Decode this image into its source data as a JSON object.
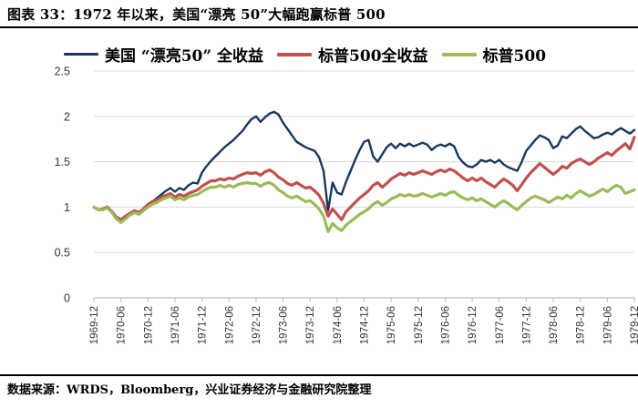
{
  "figure": {
    "title": "图表 33：1972 年以来，美国“漂亮 50”大幅跑赢标普 500",
    "source_note": "数据来源：WRDS，Bloomberg，兴业证券经济与金融研究院整理"
  },
  "chart_data": {
    "type": "line",
    "title": "",
    "xlabel": "",
    "ylabel": "",
    "ylim": [
      0,
      2.5
    ],
    "yticks": [
      "0",
      "0.5",
      "1",
      "1.5",
      "2",
      "2.5"
    ],
    "grid": "horizontal",
    "legend_position": "top",
    "x_tick_every": 6,
    "x": [
      "1969-12",
      "1970-01",
      "1970-02",
      "1970-03",
      "1970-04",
      "1970-05",
      "1970-06",
      "1970-07",
      "1970-08",
      "1970-09",
      "1970-10",
      "1970-11",
      "1970-12",
      "1971-01",
      "1971-02",
      "1971-03",
      "1971-04",
      "1971-05",
      "1971-06",
      "1971-07",
      "1971-08",
      "1971-09",
      "1971-10",
      "1971-11",
      "1971-12",
      "1972-01",
      "1972-02",
      "1972-03",
      "1972-04",
      "1972-05",
      "1972-06",
      "1972-07",
      "1972-08",
      "1972-09",
      "1972-10",
      "1972-11",
      "1972-12",
      "1973-01",
      "1973-02",
      "1973-03",
      "1973-04",
      "1973-05",
      "1973-06",
      "1973-07",
      "1973-08",
      "1973-09",
      "1973-10",
      "1973-11",
      "1973-12",
      "1974-01",
      "1974-02",
      "1974-03",
      "1974-04",
      "1974-05",
      "1974-06",
      "1974-07",
      "1974-08",
      "1974-09",
      "1974-10",
      "1974-11",
      "1974-12",
      "1975-01",
      "1975-02",
      "1975-03",
      "1975-04",
      "1975-05",
      "1975-06",
      "1975-07",
      "1975-08",
      "1975-09",
      "1975-10",
      "1975-11",
      "1975-12",
      "1976-01",
      "1976-02",
      "1976-03",
      "1976-04",
      "1976-05",
      "1976-06",
      "1976-07",
      "1976-08",
      "1976-09",
      "1976-10",
      "1976-11",
      "1976-12",
      "1977-01",
      "1977-02",
      "1977-03",
      "1977-04",
      "1977-05",
      "1977-06",
      "1977-07",
      "1977-08",
      "1977-09",
      "1977-10",
      "1977-11",
      "1977-12",
      "1978-01",
      "1978-02",
      "1978-03",
      "1978-04",
      "1978-05",
      "1978-06",
      "1978-07",
      "1978-08",
      "1978-09",
      "1978-10",
      "1978-11",
      "1978-12",
      "1979-01",
      "1979-02",
      "1979-03",
      "1979-04",
      "1979-05",
      "1979-06",
      "1979-07",
      "1979-08",
      "1979-09",
      "1979-10",
      "1979-11",
      "1979-12"
    ],
    "series": [
      {
        "name": "美国 “漂亮50” 全收益",
        "color": "#17375e",
        "width": 2.4,
        "values": [
          1.0,
          0.97,
          0.98,
          1.0,
          0.95,
          0.88,
          0.84,
          0.88,
          0.92,
          0.95,
          0.93,
          0.97,
          1.02,
          1.06,
          1.1,
          1.14,
          1.18,
          1.21,
          1.17,
          1.21,
          1.19,
          1.24,
          1.27,
          1.26,
          1.38,
          1.45,
          1.51,
          1.56,
          1.61,
          1.66,
          1.7,
          1.74,
          1.79,
          1.84,
          1.91,
          1.97,
          2.0,
          1.94,
          1.99,
          2.03,
          2.05,
          2.02,
          1.93,
          1.86,
          1.79,
          1.72,
          1.69,
          1.66,
          1.64,
          1.62,
          1.55,
          1.4,
          0.96,
          1.27,
          1.16,
          1.14,
          1.28,
          1.4,
          1.52,
          1.63,
          1.72,
          1.74,
          1.56,
          1.5,
          1.58,
          1.66,
          1.7,
          1.65,
          1.7,
          1.67,
          1.7,
          1.67,
          1.69,
          1.71,
          1.69,
          1.63,
          1.67,
          1.69,
          1.67,
          1.7,
          1.67,
          1.55,
          1.49,
          1.45,
          1.44,
          1.47,
          1.52,
          1.5,
          1.52,
          1.49,
          1.52,
          1.47,
          1.44,
          1.42,
          1.4,
          1.5,
          1.62,
          1.68,
          1.74,
          1.79,
          1.77,
          1.74,
          1.65,
          1.68,
          1.78,
          1.76,
          1.81,
          1.86,
          1.89,
          1.84,
          1.8,
          1.76,
          1.77,
          1.8,
          1.82,
          1.8,
          1.84,
          1.87,
          1.84,
          1.81,
          1.85
        ]
      },
      {
        "name": "标普500全收益",
        "color": "#c0504d",
        "width": 3.2,
        "values": [
          1.0,
          0.97,
          0.98,
          1.0,
          0.95,
          0.89,
          0.86,
          0.9,
          0.93,
          0.96,
          0.94,
          0.98,
          1.03,
          1.06,
          1.08,
          1.11,
          1.13,
          1.15,
          1.11,
          1.14,
          1.12,
          1.15,
          1.17,
          1.19,
          1.23,
          1.26,
          1.29,
          1.29,
          1.31,
          1.3,
          1.32,
          1.31,
          1.34,
          1.36,
          1.38,
          1.37,
          1.38,
          1.35,
          1.39,
          1.41,
          1.38,
          1.33,
          1.3,
          1.26,
          1.24,
          1.27,
          1.24,
          1.21,
          1.22,
          1.18,
          1.13,
          1.04,
          0.9,
          0.98,
          0.92,
          0.86,
          0.95,
          1.0,
          1.05,
          1.1,
          1.14,
          1.18,
          1.24,
          1.27,
          1.22,
          1.26,
          1.31,
          1.34,
          1.37,
          1.35,
          1.38,
          1.36,
          1.38,
          1.4,
          1.38,
          1.36,
          1.39,
          1.41,
          1.39,
          1.42,
          1.4,
          1.36,
          1.32,
          1.29,
          1.32,
          1.29,
          1.32,
          1.28,
          1.25,
          1.22,
          1.27,
          1.31,
          1.28,
          1.24,
          1.18,
          1.25,
          1.32,
          1.38,
          1.43,
          1.48,
          1.44,
          1.4,
          1.36,
          1.4,
          1.45,
          1.43,
          1.48,
          1.51,
          1.53,
          1.5,
          1.47,
          1.5,
          1.54,
          1.57,
          1.6,
          1.57,
          1.62,
          1.66,
          1.7,
          1.64,
          1.77
        ]
      },
      {
        "name": "标普500",
        "color": "#9bbb59",
        "width": 3.2,
        "values": [
          1.0,
          0.97,
          0.97,
          0.99,
          0.94,
          0.87,
          0.83,
          0.87,
          0.91,
          0.94,
          0.92,
          0.96,
          1.0,
          1.03,
          1.05,
          1.08,
          1.1,
          1.12,
          1.08,
          1.1,
          1.08,
          1.11,
          1.13,
          1.14,
          1.17,
          1.2,
          1.22,
          1.22,
          1.24,
          1.22,
          1.24,
          1.22,
          1.25,
          1.26,
          1.27,
          1.26,
          1.26,
          1.23,
          1.26,
          1.27,
          1.24,
          1.19,
          1.16,
          1.12,
          1.1,
          1.12,
          1.09,
          1.06,
          1.07,
          1.03,
          0.98,
          0.9,
          0.73,
          0.82,
          0.77,
          0.74,
          0.8,
          0.84,
          0.88,
          0.92,
          0.95,
          0.98,
          1.03,
          1.06,
          1.02,
          1.05,
          1.09,
          1.11,
          1.14,
          1.12,
          1.14,
          1.12,
          1.13,
          1.15,
          1.13,
          1.11,
          1.13,
          1.15,
          1.13,
          1.16,
          1.17,
          1.13,
          1.1,
          1.08,
          1.1,
          1.07,
          1.09,
          1.06,
          1.03,
          1.0,
          1.04,
          1.07,
          1.04,
          1.0,
          0.97,
          1.02,
          1.06,
          1.1,
          1.12,
          1.1,
          1.08,
          1.05,
          1.08,
          1.11,
          1.09,
          1.13,
          1.1,
          1.15,
          1.18,
          1.15,
          1.12,
          1.14,
          1.17,
          1.2,
          1.17,
          1.21,
          1.24,
          1.22,
          1.15,
          1.17,
          1.19
        ]
      }
    ]
  }
}
